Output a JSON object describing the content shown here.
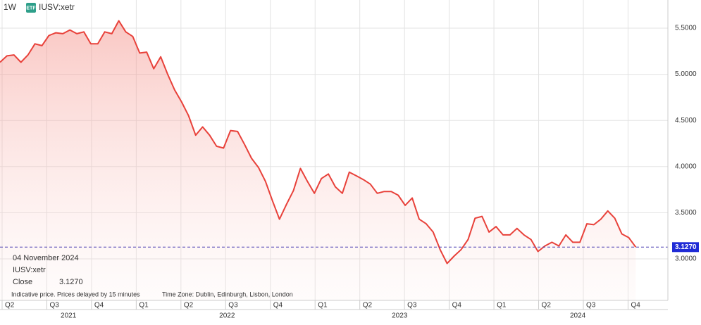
{
  "chart_data": {
    "type": "area-line",
    "interval": "1W",
    "badge": "ETF",
    "symbol": "IUSV:xetr",
    "color": "#e8413a",
    "values": [
      5.13,
      5.2,
      5.21,
      5.13,
      5.21,
      5.33,
      5.31,
      5.42,
      5.45,
      5.44,
      5.48,
      5.44,
      5.46,
      5.33,
      5.33,
      5.46,
      5.44,
      5.58,
      5.46,
      5.41,
      5.23,
      5.24,
      5.06,
      5.19,
      5.0,
      4.83,
      4.7,
      4.55,
      4.34,
      4.43,
      4.34,
      4.22,
      4.2,
      4.39,
      4.38,
      4.24,
      4.09,
      3.99,
      3.84,
      3.63,
      3.43,
      3.59,
      3.74,
      3.98,
      3.84,
      3.71,
      3.87,
      3.92,
      3.78,
      3.71,
      3.94,
      3.9,
      3.86,
      3.81,
      3.71,
      3.73,
      3.73,
      3.69,
      3.58,
      3.66,
      3.43,
      3.38,
      3.29,
      3.1,
      2.95,
      3.03,
      3.1,
      3.21,
      3.44,
      3.46,
      3.29,
      3.35,
      3.26,
      3.26,
      3.33,
      3.26,
      3.21,
      3.08,
      3.14,
      3.18,
      3.14,
      3.26,
      3.18,
      3.18,
      3.38,
      3.37,
      3.43,
      3.52,
      3.44,
      3.27,
      3.23,
      3.127
    ],
    "xlim": [
      0,
      95.6
    ],
    "ylim": [
      2.55,
      5.805
    ],
    "yticks": [
      {
        "value": 3,
        "label": "3.0000"
      },
      {
        "value": 3.5,
        "label": "3.5000"
      },
      {
        "value": 4,
        "label": "4.0000"
      },
      {
        "value": 4.5,
        "label": "4.5000"
      },
      {
        "value": 5,
        "label": "5.0000"
      },
      {
        "value": 5.5,
        "label": "5.5000"
      }
    ],
    "xticks": [
      {
        "value": 0.3,
        "label": "Q2"
      },
      {
        "value": 6.7,
        "label": "Q3"
      },
      {
        "value": 13.1,
        "label": "Q4"
      },
      {
        "value": 19.5,
        "label": "Q1"
      },
      {
        "value": 25.9,
        "label": "Q2"
      },
      {
        "value": 32.3,
        "label": "Q3"
      },
      {
        "value": 38.7,
        "label": "Q4"
      },
      {
        "value": 45.1,
        "label": "Q1"
      },
      {
        "value": 51.5,
        "label": "Q2"
      },
      {
        "value": 57.9,
        "label": "Q3"
      },
      {
        "value": 64.3,
        "label": "Q4"
      },
      {
        "value": 70.7,
        "label": "Q1"
      },
      {
        "value": 77.1,
        "label": "Q2"
      },
      {
        "value": 83.5,
        "label": "Q3"
      },
      {
        "value": 89.9,
        "label": "Q4"
      }
    ],
    "year_labels": [
      {
        "value": 9.8,
        "label": "2021"
      },
      {
        "value": 32.5,
        "label": "2022"
      },
      {
        "value": 57.2,
        "label": "2023"
      },
      {
        "value": 82.7,
        "label": "2024"
      }
    ],
    "close": {
      "value": 3.127,
      "label": "3.1270"
    },
    "tooltip": {
      "date": "04 November 2024",
      "symbol": "IUSV:xetr",
      "field": "Close",
      "value": "3.1270"
    },
    "note": "Indicative price. Prices delayed by 15 minutes",
    "timezone": "Time Zone: Dublin, Edinburgh, Lisbon, London",
    "grid": true
  }
}
